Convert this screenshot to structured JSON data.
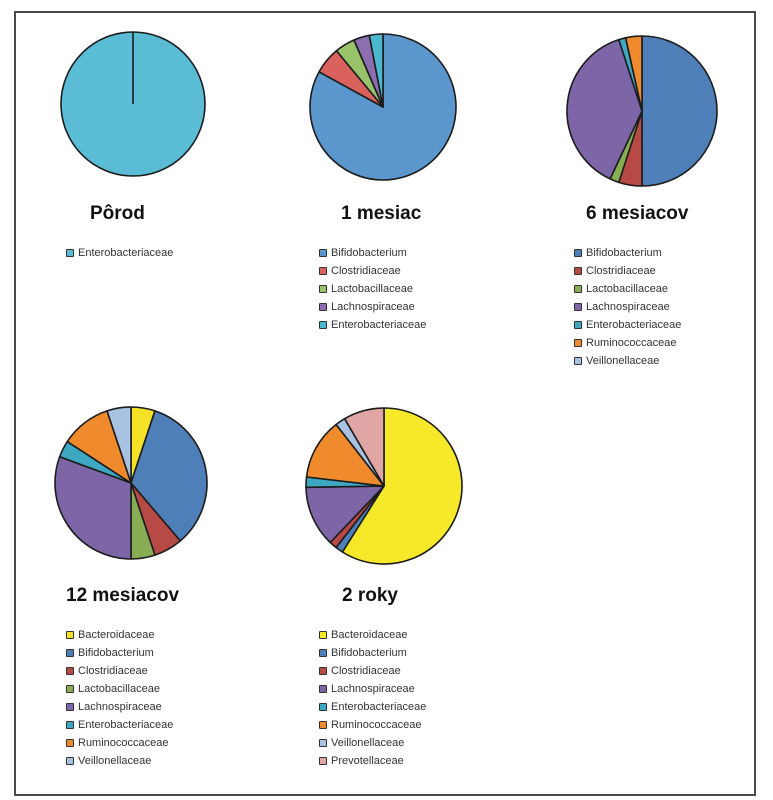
{
  "chart_data": [
    {
      "type": "pie",
      "title": "Pôrod",
      "slices": [
        {
          "label": "Enterobacteriaceae",
          "value": 100,
          "color": "#5bbcd6"
        }
      ]
    },
    {
      "type": "pie",
      "title": "1 mesiac",
      "slices": [
        {
          "label": "Bifidobacterium",
          "value": 83,
          "color": "#5b96cc"
        },
        {
          "label": "Clostridiaceae",
          "value": 6,
          "color": "#d9625d"
        },
        {
          "label": "Lactobacillaceae",
          "value": 4.5,
          "color": "#98c36a"
        },
        {
          "label": "Lachnospiraceae",
          "value": 3.5,
          "color": "#8b6fb0"
        },
        {
          "label": "Enterobacteriaceae",
          "value": 3,
          "color": "#4cb8d0"
        }
      ]
    },
    {
      "type": "pie",
      "title": "6 mesiacov",
      "slices": [
        {
          "label": "Bifidobacterium",
          "value": 50,
          "color": "#4f7fb8"
        },
        {
          "label": "Clostridiaceae",
          "value": 5,
          "color": "#b84a45"
        },
        {
          "label": "Lactobacillaceae",
          "value": 2,
          "color": "#88ad55"
        },
        {
          "label": "Lachnospiraceae",
          "value": 38,
          "color": "#7d66a8"
        },
        {
          "label": "Enterobacteriaceae",
          "value": 1.5,
          "color": "#3ea8c2"
        },
        {
          "label": "Ruminococcaceae",
          "value": 3.5,
          "color": "#ef8b2c"
        },
        {
          "label": "Veillonellaceae",
          "value": 0,
          "color": "#a9c2e2"
        }
      ]
    },
    {
      "type": "pie",
      "title": "12 mesiacov",
      "slices": [
        {
          "label": "Bacteroidaceae",
          "value": 5,
          "color": "#f5e125"
        },
        {
          "label": "Bifidobacterium",
          "value": 33,
          "color": "#4f7fb8"
        },
        {
          "label": "Clostridiaceae",
          "value": 6,
          "color": "#b84a45"
        },
        {
          "label": "Lactobacillaceae",
          "value": 5,
          "color": "#88ad55"
        },
        {
          "label": "Lachnospiraceae",
          "value": 30,
          "color": "#7d66a8"
        },
        {
          "label": "Enterobacteriaceae",
          "value": 3.5,
          "color": "#3ea8c2"
        },
        {
          "label": "Ruminococcaceae",
          "value": 10.5,
          "color": "#ef8b2c"
        },
        {
          "label": "Veillonellaceae",
          "value": 5,
          "color": "#a9c2e2"
        }
      ]
    },
    {
      "type": "pie",
      "title": "2 roky",
      "slices": [
        {
          "label": "Bacteroidaceae",
          "value": 56,
          "color": "#f5e92a"
        },
        {
          "label": "Bifidobacterium",
          "value": 1.5,
          "color": "#4f7fb8"
        },
        {
          "label": "Clostridiaceae",
          "value": 1.5,
          "color": "#b84a45"
        },
        {
          "label": "Lachnospiraceae",
          "value": 12,
          "color": "#7d66a8"
        },
        {
          "label": "Enterobacteriaceae",
          "value": 2,
          "color": "#3ea8c2"
        },
        {
          "label": "Ruminococcaceae",
          "value": 12,
          "color": "#ef8b2c"
        },
        {
          "label": "Veillonellaceae",
          "value": 2,
          "color": "#a9c2e2"
        },
        {
          "label": "Prevotellaceae",
          "value": 8,
          "color": "#e0a5a5"
        }
      ]
    }
  ]
}
